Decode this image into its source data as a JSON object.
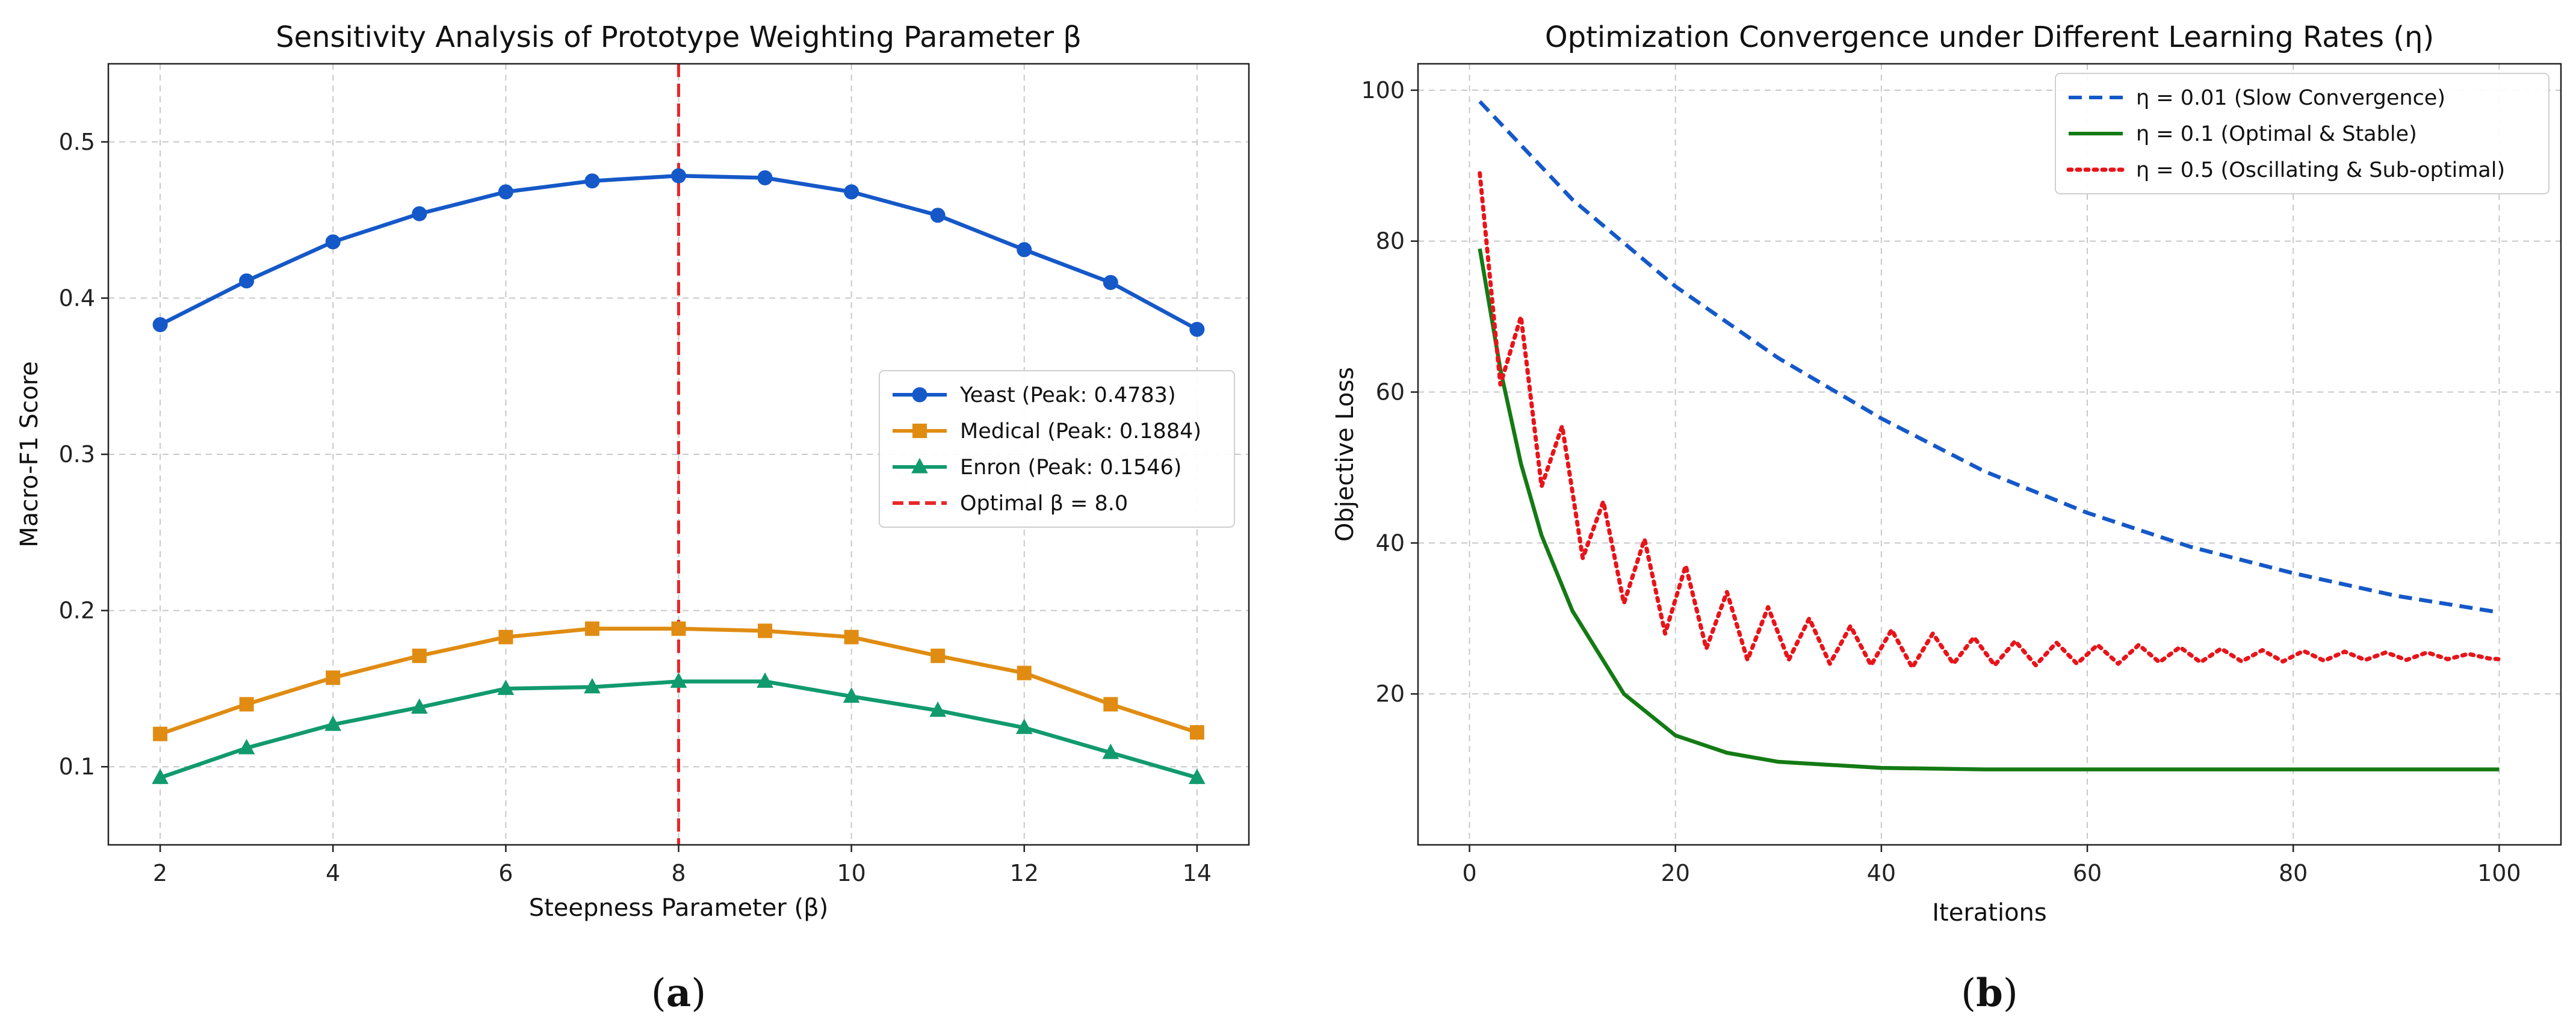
{
  "chart_data": [
    {
      "type": "line",
      "panel_label": "(a)",
      "panel_letter": "a",
      "title": "Sensitivity Analysis of Prototype Weighting Parameter β",
      "xlabel": "Steepness Parameter (β)",
      "ylabel": "Macro-F1 Score",
      "xlim": [
        1.4,
        14.6
      ],
      "ylim": [
        0.05,
        0.55
      ],
      "xticks": [
        2,
        4,
        6,
        8,
        10,
        12,
        14
      ],
      "yticks": [
        0.1,
        0.2,
        0.3,
        0.4,
        0.5
      ],
      "x": [
        2,
        3,
        4,
        5,
        6,
        7,
        8,
        9,
        10,
        11,
        12,
        13,
        14
      ],
      "grid": true,
      "legend_position": "center-right",
      "series": [
        {
          "name": "Yeast (Peak: 0.4783)",
          "color": "#1558c8",
          "marker": "circle",
          "values": [
            0.383,
            0.411,
            0.436,
            0.454,
            0.468,
            0.475,
            0.4783,
            0.477,
            0.468,
            0.453,
            0.431,
            0.41,
            0.38
          ]
        },
        {
          "name": "Medical (Peak: 0.1884)",
          "color": "#e08c12",
          "marker": "square",
          "values": [
            0.121,
            0.14,
            0.157,
            0.171,
            0.183,
            0.1884,
            0.1884,
            0.187,
            0.183,
            0.171,
            0.16,
            0.14,
            0.122
          ]
        },
        {
          "name": "Enron (Peak: 0.1546)",
          "color": "#119a6e",
          "marker": "triangle",
          "values": [
            0.093,
            0.112,
            0.127,
            0.138,
            0.15,
            0.151,
            0.1546,
            0.1546,
            0.145,
            0.136,
            0.125,
            0.109,
            0.093
          ]
        }
      ],
      "vline": {
        "x": 8.0,
        "label": "Optimal β = 8.0",
        "color": "#e8272a"
      }
    },
    {
      "type": "line",
      "panel_label": "(b)",
      "panel_letter": "b",
      "title": "Optimization Convergence under Different Learning Rates (η)",
      "xlabel": "Iterations",
      "ylabel": "Objective Loss",
      "xlim": [
        -5,
        106
      ],
      "ylim": [
        0,
        103.5
      ],
      "xticks": [
        0,
        20,
        40,
        60,
        80,
        100
      ],
      "yticks": [
        20,
        40,
        60,
        80,
        100
      ],
      "grid": true,
      "legend_position": "top-right",
      "series": [
        {
          "name": "η = 0.01 (Slow Convergence)",
          "color": "#1558c8",
          "style": "dashed",
          "x": [
            1,
            10,
            20,
            30,
            40,
            50,
            60,
            70,
            80,
            90,
            100
          ],
          "values": [
            98.5,
            85.5,
            74.0,
            64.5,
            56.5,
            49.5,
            44.0,
            39.5,
            36.0,
            33.0,
            30.8
          ]
        },
        {
          "name": "η = 0.1 (Optimal & Stable)",
          "color": "#147a14",
          "style": "solid",
          "x": [
            1,
            3,
            5,
            7,
            10,
            15,
            20,
            25,
            30,
            40,
            50,
            60,
            80,
            100
          ],
          "values": [
            79.0,
            63.0,
            50.5,
            41.0,
            31.0,
            20.0,
            14.5,
            12.2,
            11.0,
            10.2,
            10.0,
            10.0,
            10.0,
            10.0
          ]
        },
        {
          "name": "η = 0.5 (Oscillating & Sub-optimal)",
          "color": "#e8141a",
          "style": "dotted",
          "x": [
            1,
            3,
            5,
            7,
            9,
            11,
            13,
            15,
            17,
            19,
            21,
            23,
            25,
            27,
            29,
            31,
            33,
            35,
            37,
            39,
            41,
            43,
            45,
            47,
            49,
            51,
            53,
            55,
            57,
            59,
            61,
            63,
            65,
            67,
            69,
            71,
            73,
            75,
            77,
            79,
            81,
            83,
            85,
            87,
            89,
            91,
            93,
            95,
            97,
            99,
            100
          ],
          "values": [
            89.0,
            61.0,
            70.0,
            47.5,
            55.5,
            38.0,
            45.5,
            32.0,
            40.5,
            28.0,
            37.0,
            26.0,
            33.5,
            24.5,
            31.5,
            24.5,
            30.0,
            24.0,
            29.0,
            23.8,
            28.5,
            23.5,
            28.0,
            24.0,
            27.5,
            23.8,
            27.0,
            23.8,
            26.8,
            24.0,
            26.5,
            24.0,
            26.5,
            24.2,
            26.2,
            24.2,
            26.0,
            24.3,
            25.8,
            24.3,
            25.7,
            24.4,
            25.6,
            24.5,
            25.5,
            24.5,
            25.5,
            24.6,
            25.3,
            24.7,
            24.6
          ]
        }
      ]
    }
  ]
}
